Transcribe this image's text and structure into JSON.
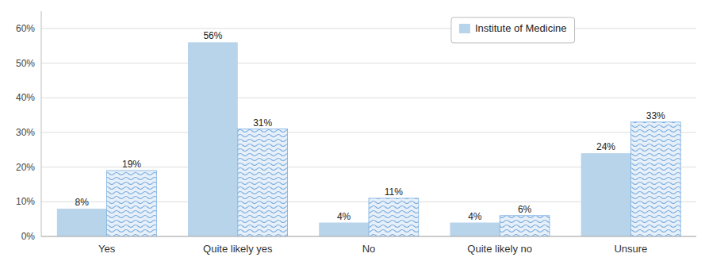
{
  "chart_data": {
    "type": "bar",
    "categories": [
      "Yes",
      "Quite likely yes",
      "No",
      "Quite likely no",
      "Unsure"
    ],
    "series": [
      {
        "name": "Institute of Medicine",
        "color": "#b8d4ea",
        "values": [
          8,
          56,
          4,
          4,
          24
        ],
        "value_labels": [
          "8%",
          "56%",
          "4%",
          "4%",
          "24%"
        ]
      },
      {
        "color": "#7aade0",
        "values": [
          19,
          31,
          11,
          6,
          33
        ],
        "value_labels": [
          "19%",
          "31%",
          "11%",
          "6%",
          "33%"
        ]
      }
    ],
    "ylim": [
      0,
      65
    ],
    "yticks": [
      {
        "value": 0,
        "label": "0%"
      },
      {
        "value": 10,
        "label": "10%"
      },
      {
        "value": 20,
        "label": "20%"
      },
      {
        "value": 30,
        "label": "30%"
      },
      {
        "value": 40,
        "label": "40%"
      },
      {
        "value": 50,
        "label": "50%"
      },
      {
        "value": 60,
        "label": "60%"
      }
    ],
    "grid": true,
    "legend": "top",
    "data_labels": true
  }
}
